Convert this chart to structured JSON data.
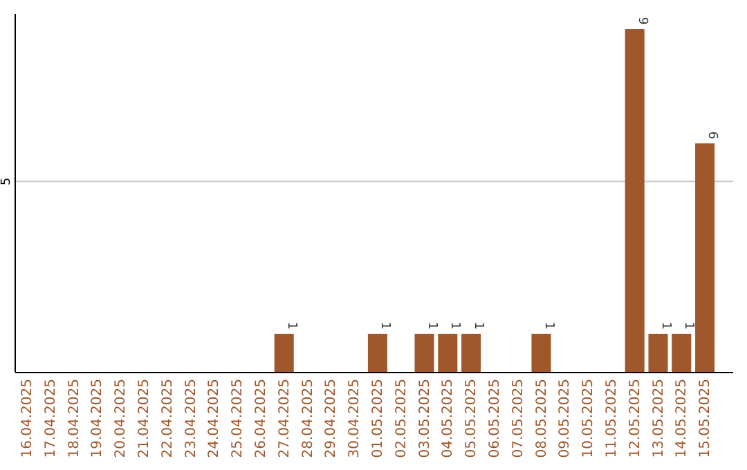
{
  "chart_data": {
    "type": "bar",
    "categories": [
      "16.04.2025",
      "17.04.2025",
      "18.04.2025",
      "19.04.2025",
      "20.04.2025",
      "21.04.2025",
      "22.04.2025",
      "23.04.2025",
      "24.04.2025",
      "25.04.2025",
      "26.04.2025",
      "27.04.2025",
      "28.04.2025",
      "29.04.2025",
      "30.04.2025",
      "01.05.2025",
      "02.05.2025",
      "03.05.2025",
      "04.05.2025",
      "05.05.2025",
      "06.05.2025",
      "07.05.2025",
      "08.05.2025",
      "09.05.2025",
      "10.05.2025",
      "11.05.2025",
      "12.05.2025",
      "13.05.2025",
      "14.05.2025",
      "15.05.2025"
    ],
    "values": [
      0,
      0,
      0,
      0,
      0,
      0,
      0,
      0,
      0,
      0,
      0,
      1,
      0,
      0,
      0,
      1,
      0,
      1,
      1,
      1,
      0,
      0,
      1,
      0,
      0,
      0,
      9,
      1,
      1,
      6
    ],
    "value_labels": [
      null,
      null,
      null,
      null,
      null,
      null,
      null,
      null,
      null,
      null,
      null,
      "1",
      null,
      null,
      null,
      "1",
      null,
      "1",
      "1",
      "1",
      null,
      null,
      "1",
      null,
      null,
      null,
      "9",
      "1",
      "1",
      "6"
    ],
    "color": "#a0572b",
    "ylim": [
      0,
      9.4
    ],
    "yticks": [
      5
    ],
    "grid": "y"
  }
}
